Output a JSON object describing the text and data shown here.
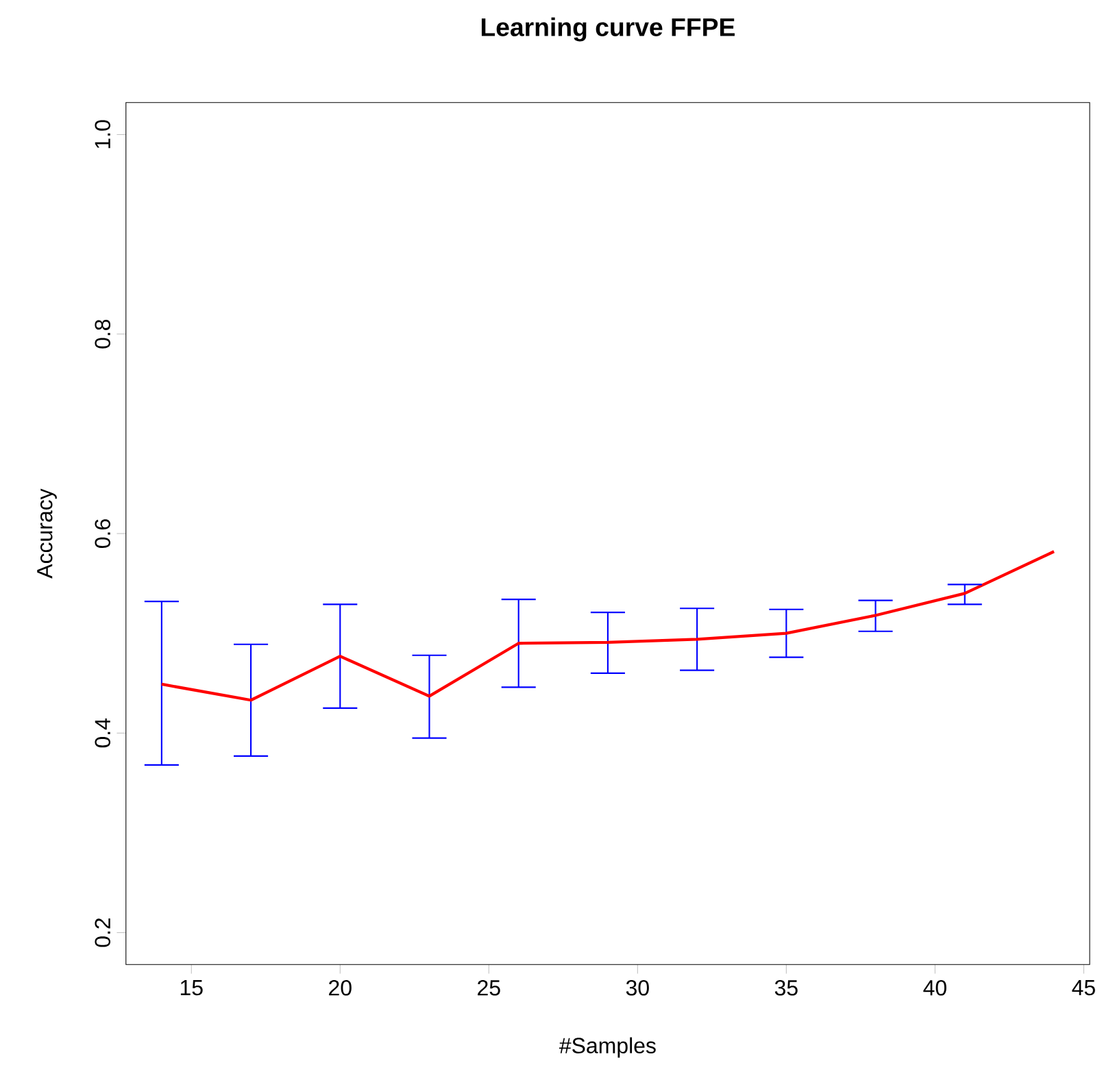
{
  "chart_data": {
    "type": "line",
    "title": "Learning curve FFPE",
    "xlabel": "#Samples",
    "ylabel": "Accuracy",
    "x": [
      14,
      17,
      20,
      23,
      26,
      29,
      32,
      35,
      38,
      41,
      44
    ],
    "series": [
      {
        "color": "#ff0000",
        "values": [
          0.449,
          0.433,
          0.477,
          0.437,
          0.49,
          0.491,
          0.494,
          0.5,
          0.518,
          0.54,
          0.582
        ],
        "errors": [
          [
            0.368,
            0.532
          ],
          [
            0.377,
            0.489
          ],
          [
            0.425,
            0.529
          ],
          [
            0.395,
            0.478
          ],
          [
            0.446,
            0.534
          ],
          [
            0.46,
            0.521
          ],
          [
            0.463,
            0.525
          ],
          [
            0.476,
            0.524
          ],
          [
            0.502,
            0.533
          ],
          [
            0.529,
            0.549
          ],
          null
        ]
      }
    ],
    "xlim": [
      12.8,
      45.2
    ],
    "ylim": [
      0.168,
      1.032
    ],
    "xticks": [
      15,
      20,
      25,
      30,
      35,
      40,
      45
    ],
    "yticks": [
      0.2,
      0.4,
      0.6,
      0.8,
      {
        "value": 1.0,
        "label": "1.0"
      }
    ],
    "grid": false,
    "marker": "none",
    "line_style": "solid"
  }
}
